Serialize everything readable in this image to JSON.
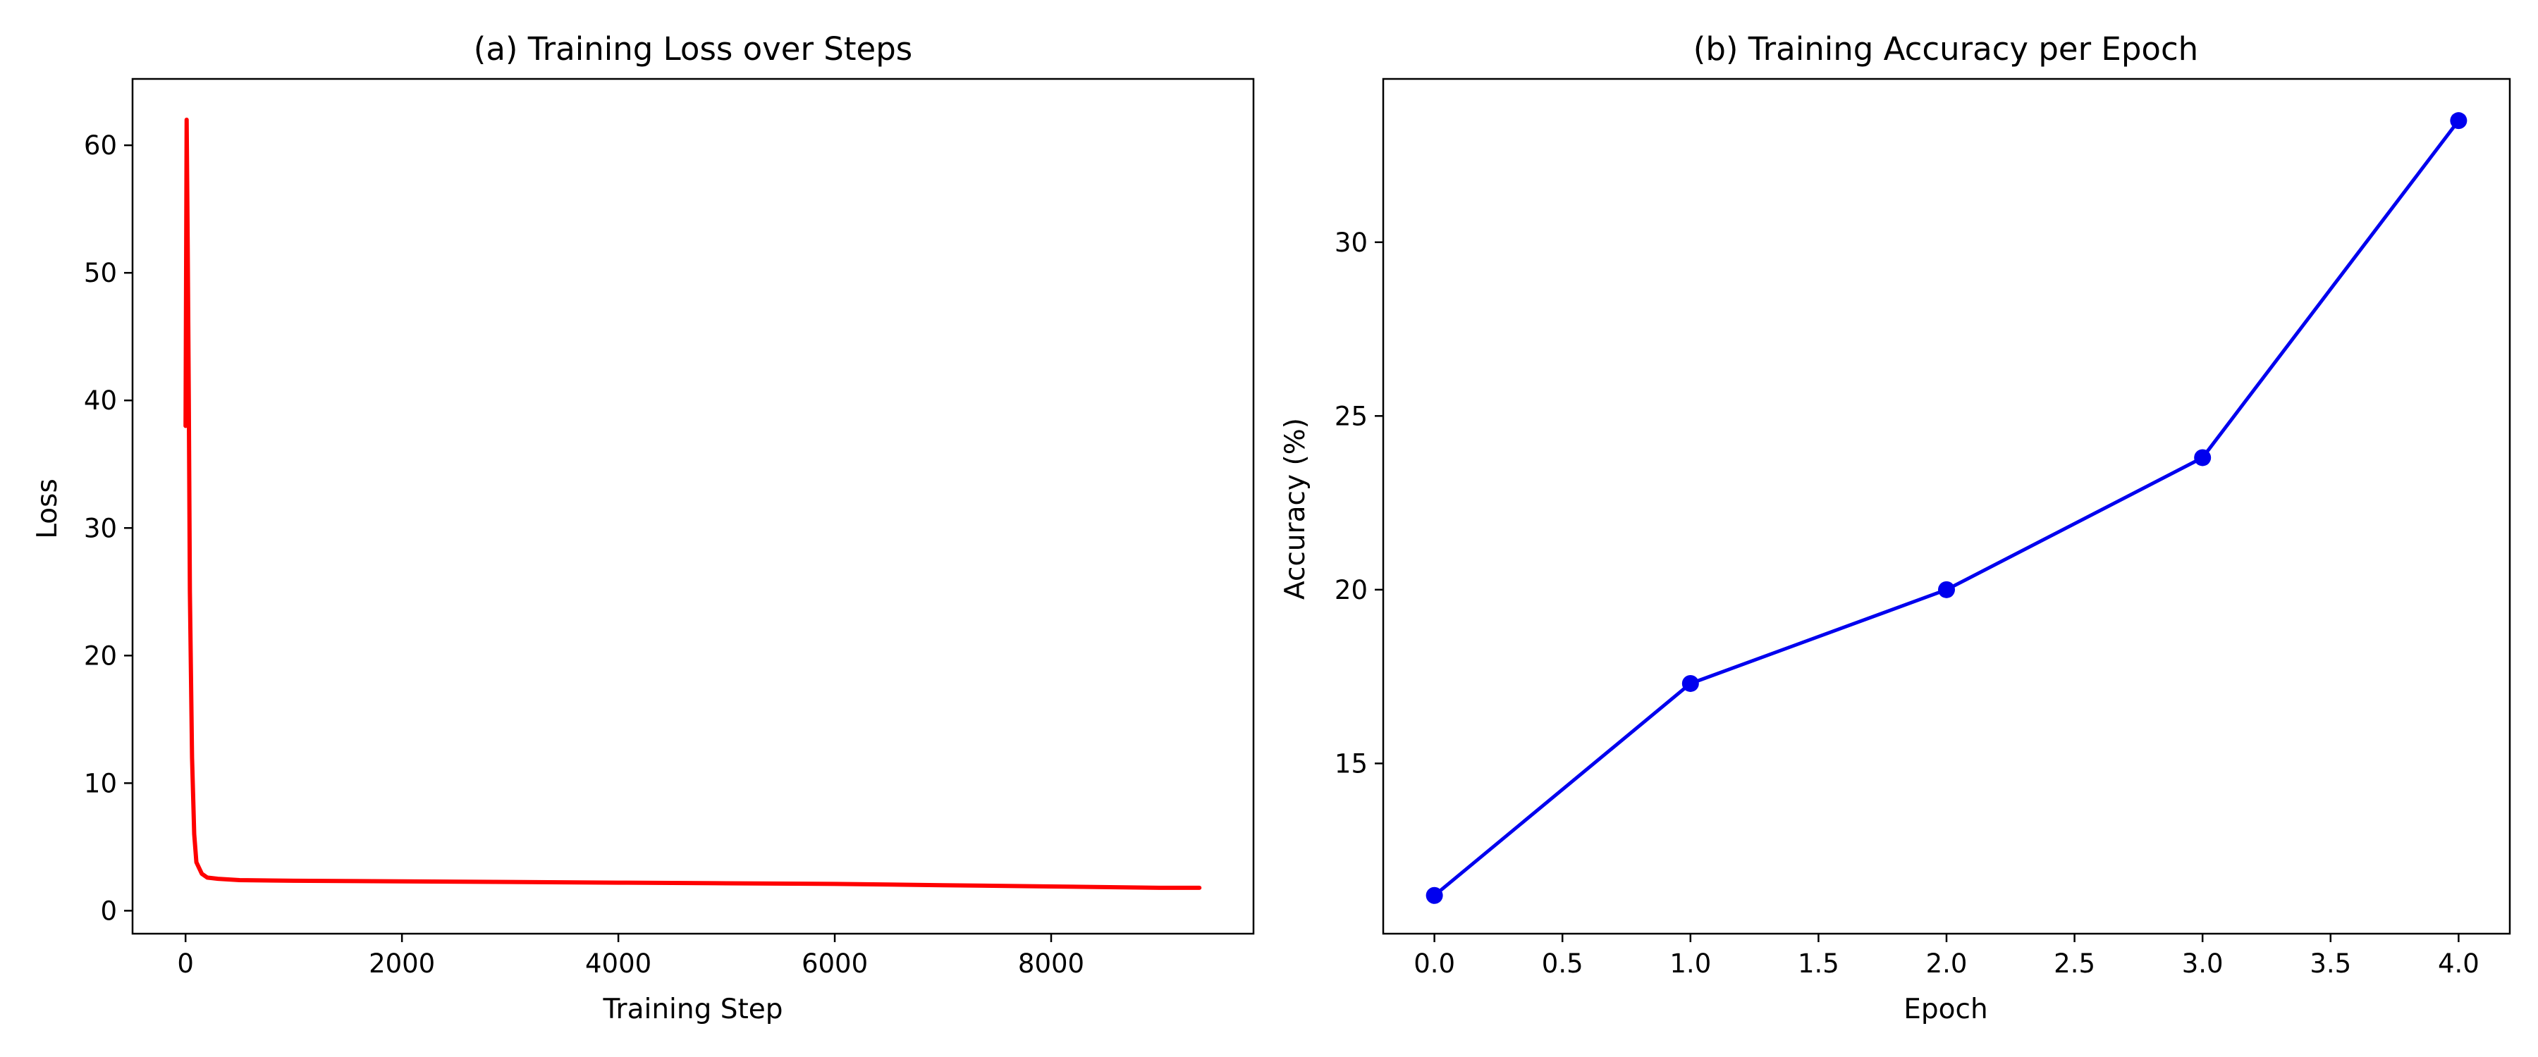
{
  "chart_data": [
    {
      "type": "line",
      "title": "(a) Training Loss over Steps",
      "xlabel": "Training Step",
      "ylabel": "Loss",
      "xlim": [
        -490,
        9870
      ],
      "ylim": [
        -1.8,
        65.2
      ],
      "xticks": [
        0,
        2000,
        4000,
        6000,
        8000
      ],
      "yticks": [
        0,
        10,
        20,
        30,
        40,
        50,
        60
      ],
      "grid": false,
      "color": "#ff0000",
      "series": [
        {
          "x": [
            0,
            10,
            20,
            30,
            40,
            60,
            80,
            100,
            150,
            200,
            300,
            500,
            1000,
            2000,
            3000,
            4000,
            5000,
            6000,
            7000,
            8000,
            9000,
            9370
          ],
          "y": [
            38,
            62,
            52,
            40,
            25,
            12,
            6,
            3.8,
            2.9,
            2.6,
            2.5,
            2.4,
            2.35,
            2.3,
            2.25,
            2.2,
            2.15,
            2.1,
            2.0,
            1.9,
            1.8,
            1.8
          ]
        }
      ]
    },
    {
      "type": "line",
      "title": "(b) Training Accuracy per Epoch",
      "xlabel": "Epoch",
      "ylabel": "Accuracy (%)",
      "xlim": [
        -0.2,
        4.2
      ],
      "ylim": [
        10.1,
        34.7
      ],
      "xticks": [
        0.0,
        0.5,
        1.0,
        1.5,
        2.0,
        2.5,
        3.0,
        3.5,
        4.0
      ],
      "yticks": [
        15,
        20,
        25,
        30
      ],
      "grid": false,
      "color": "#0000ee",
      "markers": true,
      "series": [
        {
          "x": [
            0,
            1,
            2,
            3,
            4
          ],
          "y": [
            11.2,
            17.3,
            20.0,
            23.8,
            33.5
          ]
        }
      ]
    }
  ]
}
